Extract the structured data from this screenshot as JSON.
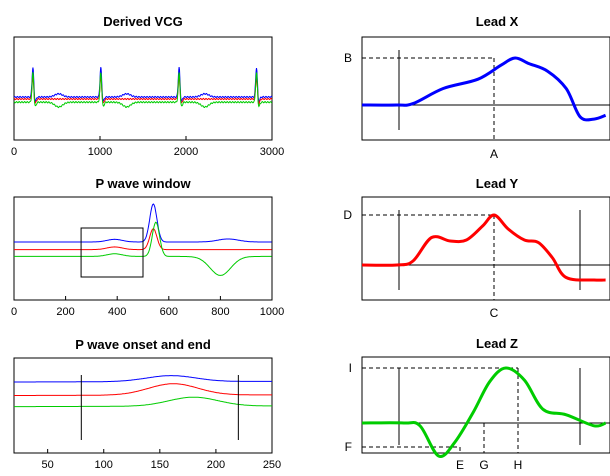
{
  "colors": {
    "x": "#0000ff",
    "y": "#ff0000",
    "z": "#00cc00",
    "axis": "#000000"
  },
  "panels": {
    "vcg": {
      "title": "Derived VCG"
    },
    "pwin": {
      "title": "P wave window"
    },
    "pend": {
      "title": "P wave onset and end"
    },
    "leadx": {
      "title": "Lead X",
      "markers": {
        "peak_y": "B",
        "peak_x": "A"
      }
    },
    "leady": {
      "title": "Lead Y",
      "markers": {
        "peak_y": "D",
        "peak_x": "C"
      }
    },
    "leadz": {
      "title": "Lead Z",
      "markers": {
        "max_y": "I",
        "min_y": "F",
        "min_x": "E",
        "cross_x": "G",
        "max_x": "H"
      }
    }
  },
  "chart_data": [
    {
      "id": "vcg",
      "type": "line",
      "title": "Derived VCG",
      "xlim": [
        0,
        3000
      ],
      "xticks": [
        0,
        1000,
        2000,
        3000
      ],
      "series": [
        {
          "color": "#0000ff",
          "baseline": 0.05,
          "beats": [
            220,
            1010,
            1920,
            2820
          ],
          "r_amp": 0.75,
          "t_amp": 0.08
        },
        {
          "color": "#ff0000",
          "baseline": 0.0,
          "beats": [
            220,
            1010,
            1920,
            2820
          ],
          "r_amp": 0.55,
          "t_amp": 0.0
        },
        {
          "color": "#00cc00",
          "baseline": -0.08,
          "beats": [
            220,
            1010,
            1920,
            2820
          ],
          "r_amp": 0.75,
          "t_amp": -0.12
        }
      ]
    },
    {
      "id": "pwin",
      "type": "line",
      "title": "P wave window",
      "xlim": [
        0,
        1000
      ],
      "xticks": [
        0,
        200,
        400,
        600,
        800,
        1000
      ],
      "window": [
        260,
        500
      ],
      "series": [
        {
          "color": "#0000ff",
          "baseline": 0.0,
          "r_at": 540,
          "r_amp": 1.0,
          "t_at": 830,
          "t_amp": 0.08
        },
        {
          "color": "#ff0000",
          "baseline": -0.2,
          "r_at": 540,
          "r_amp": 0.55,
          "t_at": 830,
          "t_amp": 0.0
        },
        {
          "color": "#00cc00",
          "baseline": -0.38,
          "r_at": 550,
          "r_amp": 0.9,
          "t_at": 800,
          "t_amp": -0.5
        }
      ]
    },
    {
      "id": "pend",
      "type": "line",
      "title": "P wave onset and end",
      "xlim": [
        20,
        250
      ],
      "xticks": [
        50,
        100,
        150,
        200,
        250
      ],
      "onset": 80,
      "end": 220,
      "series": [
        {
          "color": "#0000ff",
          "baseline": 0.0,
          "peak_at": 160,
          "amp": 0.2
        },
        {
          "color": "#ff0000",
          "baseline": -0.45,
          "peak_at": 162,
          "amp": 0.38
        },
        {
          "color": "#00cc00",
          "baseline": -0.82,
          "peak_at": 180,
          "amp": 0.3
        }
      ]
    },
    {
      "id": "leadx",
      "type": "line",
      "title": "Lead X",
      "color": "#0000ff",
      "points": [
        [
          0,
          0
        ],
        [
          0.15,
          0
        ],
        [
          0.22,
          0.03
        ],
        [
          0.35,
          0.35
        ],
        [
          0.5,
          0.55
        ],
        [
          0.6,
          0.85
        ],
        [
          0.66,
          1.0
        ],
        [
          0.72,
          0.88
        ],
        [
          0.8,
          0.72
        ],
        [
          0.88,
          0.35
        ],
        [
          0.94,
          -0.25
        ],
        [
          1.0,
          -0.3
        ],
        [
          1.05,
          -0.22
        ]
      ]
    },
    {
      "id": "leady",
      "type": "line",
      "title": "Lead Y",
      "color": "#ff0000",
      "points": [
        [
          0,
          0
        ],
        [
          0.15,
          0
        ],
        [
          0.22,
          0.08
        ],
        [
          0.3,
          0.55
        ],
        [
          0.38,
          0.48
        ],
        [
          0.45,
          0.5
        ],
        [
          0.52,
          0.78
        ],
        [
          0.57,
          1.0
        ],
        [
          0.63,
          0.72
        ],
        [
          0.7,
          0.5
        ],
        [
          0.76,
          0.45
        ],
        [
          0.82,
          0.15
        ],
        [
          0.88,
          -0.25
        ],
        [
          1.0,
          -0.3
        ],
        [
          1.05,
          -0.3
        ]
      ]
    },
    {
      "id": "leadz",
      "type": "line",
      "title": "Lead Z",
      "color": "#00cc00",
      "points": [
        [
          0,
          0
        ],
        [
          0.18,
          0
        ],
        [
          0.25,
          -0.05
        ],
        [
          0.33,
          -0.6
        ],
        [
          0.4,
          -0.35
        ],
        [
          0.48,
          0.2
        ],
        [
          0.55,
          0.75
        ],
        [
          0.62,
          1.0
        ],
        [
          0.7,
          0.78
        ],
        [
          0.78,
          0.25
        ],
        [
          0.88,
          0.15
        ],
        [
          1.0,
          -0.05
        ],
        [
          1.05,
          0.0
        ]
      ]
    }
  ]
}
